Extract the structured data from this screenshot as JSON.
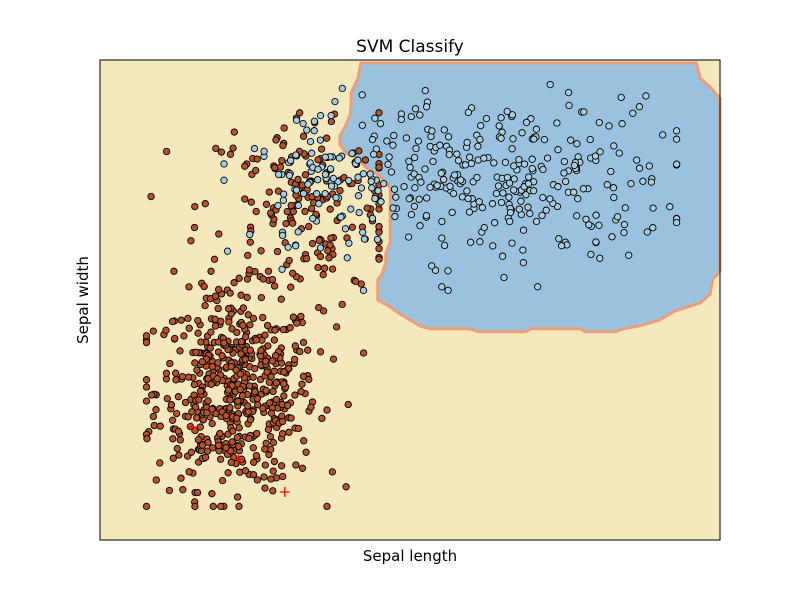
{
  "chart_data": {
    "type": "scatter",
    "title": "SVM Classify",
    "xlabel": "Sepal length",
    "ylabel": "Sepal width",
    "xticks": [],
    "yticks": [],
    "xlim": [
      0,
      100
    ],
    "ylim": [
      0,
      100
    ],
    "grid": false,
    "legend": "none",
    "colors": {
      "class0_region": "#f6e8bd",
      "class1_region": "#9ac2df",
      "boundary_band": "#e79f7c",
      "class0_point": "#b5532a",
      "class1_point": "#a6cee3",
      "point_edge": "#000000",
      "support_marker": "#ff0000"
    },
    "decision_region_class1": [
      [
        42.1,
        99.4
      ],
      [
        96.2,
        99.4
      ],
      [
        96.8,
        96.2
      ],
      [
        98.4,
        94.4
      ],
      [
        100,
        92.0
      ],
      [
        100,
        56.0
      ],
      [
        98.8,
        54.2
      ],
      [
        98.4,
        51.2
      ],
      [
        96.8,
        49.4
      ],
      [
        92.6,
        47.6
      ],
      [
        90.2,
        45.8
      ],
      [
        87.0,
        44.6
      ],
      [
        84.4,
        44.0
      ],
      [
        83.1,
        43.4
      ],
      [
        78.2,
        43.4
      ],
      [
        77.6,
        44.0
      ],
      [
        69.4,
        44.0
      ],
      [
        68.7,
        43.4
      ],
      [
        61.0,
        43.4
      ],
      [
        59.7,
        44.0
      ],
      [
        53.2,
        44.0
      ],
      [
        51.6,
        44.6
      ],
      [
        48.5,
        47.0
      ],
      [
        46.5,
        48.8
      ],
      [
        44.8,
        50.0
      ],
      [
        44.8,
        54.2
      ],
      [
        45.5,
        55.4
      ],
      [
        46.1,
        57.8
      ],
      [
        46.1,
        59.6
      ],
      [
        46.8,
        62.0
      ],
      [
        46.8,
        73.4
      ],
      [
        45.2,
        75.8
      ],
      [
        42.9,
        77.6
      ],
      [
        41.6,
        79.4
      ],
      [
        39.7,
        80.6
      ],
      [
        38.7,
        82.4
      ],
      [
        38.7,
        84.2
      ],
      [
        39.5,
        86.0
      ],
      [
        40.3,
        88.4
      ],
      [
        40.5,
        90.8
      ],
      [
        40.5,
        93.2
      ],
      [
        41.6,
        96.2
      ]
    ],
    "series": [
      {
        "class": 0,
        "center": [
          22,
          31
        ],
        "spread": [
          6.5,
          10
        ],
        "count": 560,
        "center_b": [
          33,
          69
        ],
        "spread_b": [
          8.5,
          11
        ],
        "count_b": 190,
        "extent": {
          "x": [
            7.5,
            45
          ],
          "y": [
            7,
            89
          ]
        }
      },
      {
        "class": 1,
        "center": [
          63,
          75
        ],
        "spread": [
          15,
          8.5
        ],
        "count": 320,
        "center_b": [
          37,
          74
        ],
        "spread_b": [
          6,
          6
        ],
        "count_b": 75,
        "extent": {
          "x": [
            20,
            93
          ],
          "y": [
            52,
            95
          ]
        }
      }
    ],
    "support_vectors": [
      {
        "x": 14.8,
        "y": 23.5
      },
      {
        "x": 22.3,
        "y": 16.8
      },
      {
        "x": 29.8,
        "y": 10.0
      }
    ]
  }
}
